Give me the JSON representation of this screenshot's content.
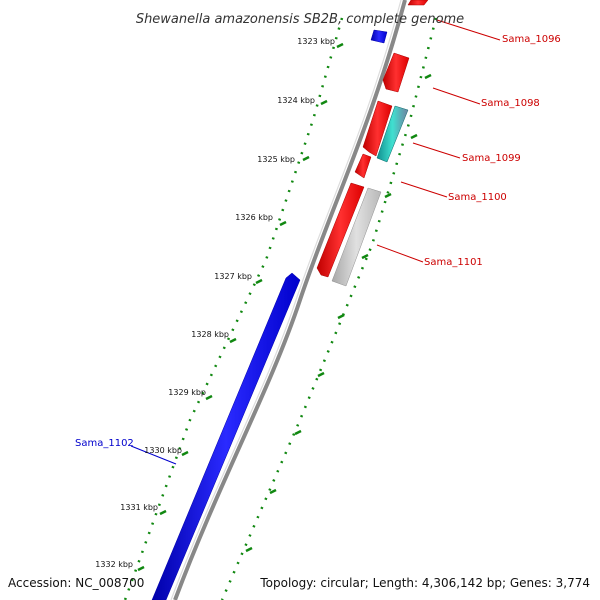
{
  "header": {
    "title": "Shewanella amazonensis SB2B, complete genome"
  },
  "footer": {
    "accession": "Accession: NC_008700",
    "summary": "Topology: circular; Length: 4,306,142 bp; Genes: 3,774"
  },
  "colors": {
    "forward_gene": "#0000ee",
    "reverse_gene": "#ee0000",
    "rna_gene": "#20b2aa",
    "pseudo_gene": "#c0c0c0",
    "backbone": "#888888",
    "ticks": "#118811"
  },
  "scale": {
    "unit": "kbp",
    "labels": [
      "1323 kbp",
      "1324 kbp",
      "1325 kbp",
      "1326 kbp",
      "1327 kbp",
      "1328 kbp",
      "1329 kbp",
      "1330 kbp",
      "1331 kbp",
      "1332 kbp"
    ]
  },
  "genes": [
    {
      "label": "Sama_1096",
      "strand": "reverse",
      "type": "cds"
    },
    {
      "label": "Sama_1098",
      "strand": "reverse",
      "type": "cds"
    },
    {
      "label": "Sama_1099",
      "strand": "reverse",
      "type": "cds"
    },
    {
      "label": "Sama_1100",
      "strand": "reverse",
      "type": "cds"
    },
    {
      "label": "Sama_1101",
      "strand": "reverse",
      "type": "pseudo"
    },
    {
      "label": "Sama_1102",
      "strand": "forward",
      "type": "cds"
    }
  ]
}
